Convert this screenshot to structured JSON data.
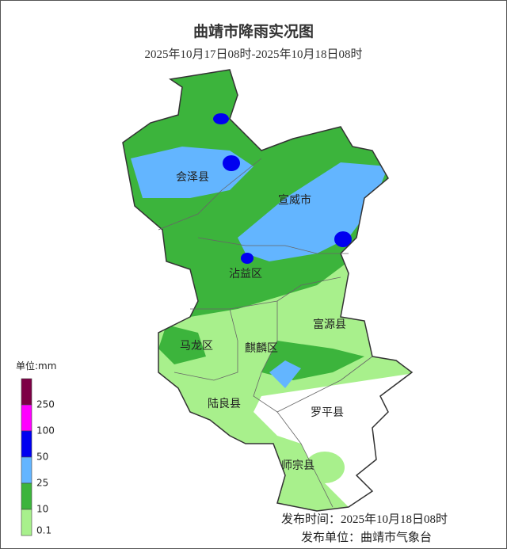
{
  "header": {
    "title": "曲靖市降雨实况图",
    "subtitle": "2025年10月17日08时-2025年10月18日08时"
  },
  "regions": [
    {
      "label": "会泽县"
    },
    {
      "label": "宣威市"
    },
    {
      "label": "沾益区"
    },
    {
      "label": "富源县"
    },
    {
      "label": "马龙区"
    },
    {
      "label": "麒麟区"
    },
    {
      "label": "陆良县"
    },
    {
      "label": "罗平县"
    },
    {
      "label": "师宗县"
    }
  ],
  "legend": {
    "unit": "单位:mm",
    "items": [
      {
        "label": 250,
        "color": "#7d0045"
      },
      {
        "label": 100,
        "color": "#ff00ff"
      },
      {
        "label": 50,
        "color": "#0000f0"
      },
      {
        "label": 25,
        "color": "#63b5ff"
      },
      {
        "label": 10,
        "color": "#3cb43c"
      },
      {
        "label": 0.1,
        "color": "#a8f08c"
      }
    ]
  },
  "footer": {
    "release_time": "发布时间：2025年10月18日08时",
    "publisher": "发布单位：曲靖市气象台"
  }
}
